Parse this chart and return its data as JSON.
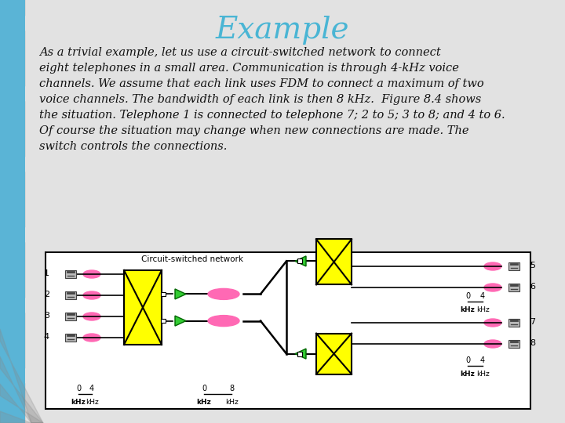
{
  "title": "Example",
  "title_color": "#4ab5d4",
  "title_fontsize": 28,
  "body_text": "As a trivial example, let us use a circuit-switched network to connect\neight telephones in a small area. Communication is through 4-kHz voice\nchannels. We assume that each link uses FDM to connect a maximum of two\nvoice channels. The bandwidth of each link is then 8 kHz.  Figure 8.4 shows\nthe situation. Telephone 1 is connected to telephone 7; 2 to 5; 3 to 8; and 4 to 6.\nOf course the situation may change when new connections are made. The\nswitch controls the connections.",
  "body_fontsize": 10.5,
  "slide_bg": "#d8d8d8",
  "diagram_bg": "#ffffff",
  "yellow": "#ffff00",
  "pink": "#ff69b4",
  "black": "#000000",
  "diagram_label": "Circuit-switched network",
  "blue_stripe": "#5ab4d6",
  "green_tri": "#33cc33"
}
